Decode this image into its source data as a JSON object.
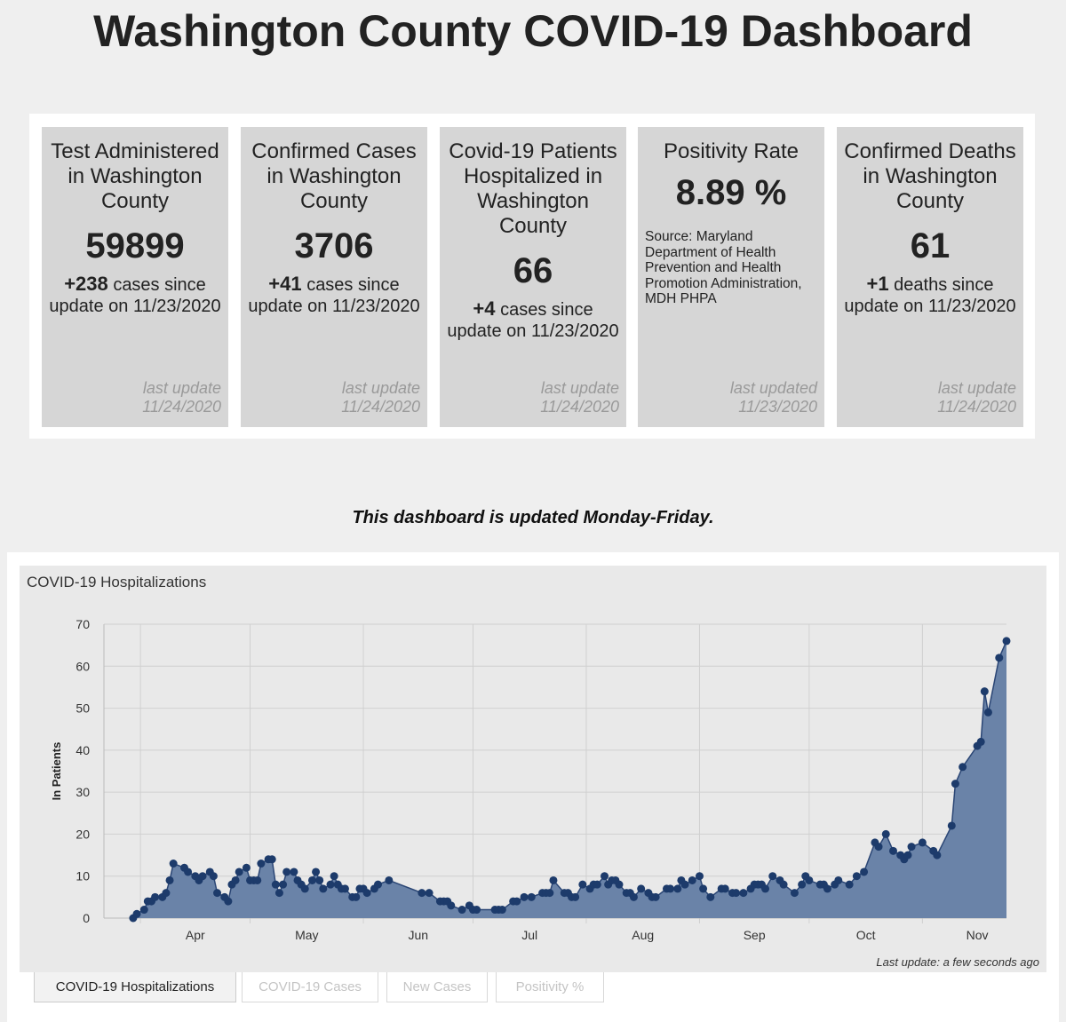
{
  "header": {
    "title": "Washington County COVID-19 Dashboard"
  },
  "cards": [
    {
      "title": "Test Administered in Washington County",
      "value": "59899",
      "change_value": "+238",
      "change_text": "cases since update on 11/23/2020",
      "last_update_label": "last update",
      "last_update_date": "11/24/2020"
    },
    {
      "title": "Confirmed Cases in Washington County",
      "value": "3706",
      "change_value": "+41",
      "change_text": "cases since update on 11/23/2020",
      "last_update_label": "last update",
      "last_update_date": "11/24/2020"
    },
    {
      "title": "Covid-19 Patients Hospitalized in Washington County",
      "value": "66",
      "change_value": "+4",
      "change_text": "cases since update on 11/23/2020",
      "last_update_label": "last update",
      "last_update_date": "11/24/2020"
    },
    {
      "title": "Positivity Rate",
      "value": "8.89 %",
      "source": "Source: Maryland Department of Health Prevention and Health Promotion Administration, MDH PHPA",
      "last_update_label": "last updated",
      "last_update_date": "11/23/2020"
    },
    {
      "title": "Confirmed Deaths in Washington County",
      "value": "61",
      "change_value": "+1",
      "change_text": "deaths since update on 11/23/2020",
      "last_update_label": "last update",
      "last_update_date": "11/24/2020"
    }
  ],
  "note": "This dashboard is updated Monday-Friday.",
  "chart_data": {
    "type": "area",
    "title": "COVID-19 Hospitalizations",
    "y_label": "In Patients",
    "footnote": "Last update: a few seconds ago",
    "color": "#6a83a8",
    "line_color": "#2b4675",
    "marker_color": "#1d3b6b",
    "grid": true,
    "x": [
      90,
      91,
      93,
      94,
      95,
      96,
      98,
      99,
      100,
      101,
      104,
      105,
      107,
      108,
      109,
      111,
      112,
      113,
      115,
      116,
      117,
      118,
      119,
      121,
      122,
      123,
      124,
      125,
      127,
      128,
      129,
      130,
      131,
      132,
      134,
      135,
      136,
      137,
      139,
      140,
      141,
      142,
      144,
      145,
      146,
      147,
      148,
      150,
      151,
      152,
      153,
      154,
      156,
      157,
      160,
      169,
      171,
      174,
      175,
      176,
      177,
      180,
      182,
      183,
      184,
      189,
      190,
      191,
      194,
      195,
      197,
      199,
      202,
      203,
      204,
      205,
      208,
      209,
      210,
      211,
      213,
      215,
      216,
      217,
      219,
      220,
      221,
      222,
      223,
      225,
      226,
      227,
      229,
      231,
      232,
      233,
      236,
      237,
      239,
      240,
      241,
      243,
      245,
      246,
      248,
      251,
      252,
      254,
      255,
      257,
      259,
      260,
      261,
      262,
      263,
      265,
      267,
      268,
      271,
      273,
      274,
      275,
      278,
      279,
      280,
      282,
      283,
      286,
      288,
      290,
      293,
      294,
      296,
      298,
      300,
      301,
      302,
      303,
      306,
      309,
      310,
      314,
      315,
      317,
      321,
      322,
      323,
      324,
      327,
      329
    ],
    "values": [
      0,
      1,
      2,
      4,
      4,
      5,
      5,
      6,
      9,
      13,
      12,
      11,
      10,
      9,
      10,
      11,
      10,
      6,
      5,
      4,
      8,
      9,
      11,
      12,
      9,
      9,
      9,
      13,
      14,
      14,
      8,
      6,
      8,
      11,
      11,
      9,
      8,
      7,
      9,
      11,
      9,
      7,
      8,
      10,
      8,
      7,
      7,
      5,
      5,
      7,
      7,
      6,
      7,
      8,
      9,
      6,
      6,
      4,
      4,
      4,
      3,
      2,
      3,
      2,
      2,
      2,
      2,
      2,
      4,
      4,
      5,
      5,
      6,
      6,
      6,
      9,
      6,
      6,
      5,
      5,
      8,
      7,
      8,
      8,
      10,
      8,
      9,
      9,
      8,
      6,
      6,
      5,
      7,
      6,
      5,
      5,
      7,
      7,
      7,
      9,
      8,
      9,
      10,
      7,
      5,
      7,
      7,
      6,
      6,
      6,
      7,
      8,
      8,
      8,
      7,
      10,
      9,
      8,
      6,
      8,
      10,
      9,
      8,
      8,
      7,
      8,
      9,
      8,
      10,
      11,
      18,
      17,
      20,
      16,
      15,
      14,
      15,
      17,
      18,
      16,
      15,
      22,
      32,
      36,
      41,
      42,
      54,
      49,
      62,
      66
    ],
    "xlim": [
      82,
      329
    ],
    "ylim": [
      0,
      70
    ],
    "xticks": [
      {
        "value": 92,
        "label": "Apr"
      },
      {
        "value": 122,
        "label": "May"
      },
      {
        "value": 153,
        "label": "Jun"
      },
      {
        "value": 183,
        "label": "Jul"
      },
      {
        "value": 214,
        "label": "Aug"
      },
      {
        "value": 245,
        "label": "Sep"
      },
      {
        "value": 275,
        "label": "Oct"
      },
      {
        "value": 306,
        "label": "Nov"
      }
    ],
    "yticks": [
      0,
      10,
      20,
      30,
      40,
      50,
      60,
      70
    ]
  },
  "tabs": [
    "COVID-19 Hospitalizations",
    "COVID-19 Cases",
    "New Cases",
    "Positivity %"
  ]
}
